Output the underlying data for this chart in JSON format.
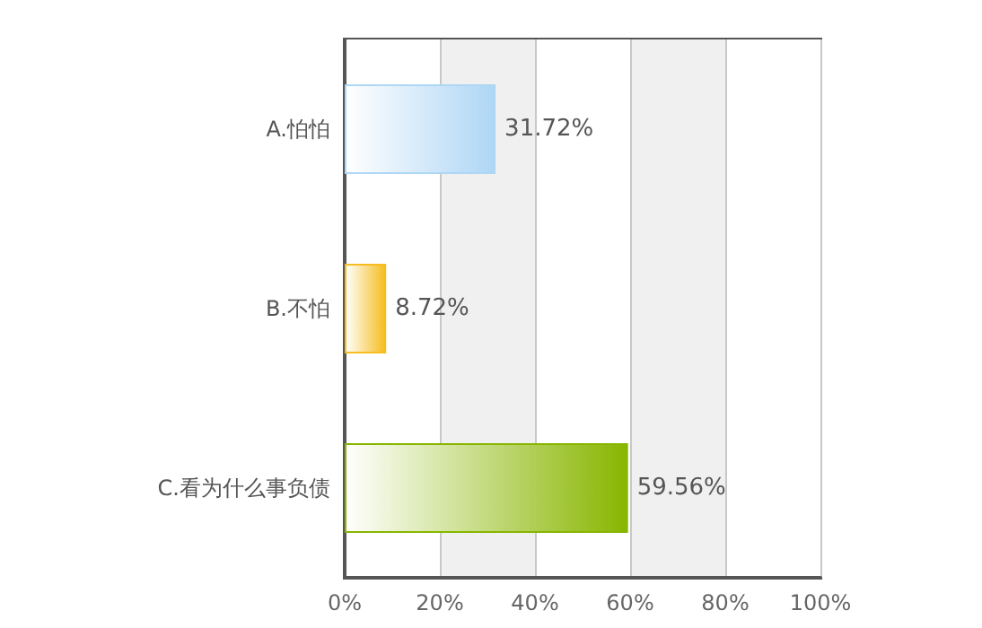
{
  "chart_data": {
    "type": "bar",
    "orientation": "horizontal",
    "categories": [
      "A.怕怕",
      "B.不怕",
      "C.看为什么事负债"
    ],
    "values": [
      31.72,
      8.72,
      59.56
    ],
    "colors": [
      "#aed6f5",
      "#f5bd1f",
      "#88b600"
    ],
    "value_labels": [
      "31.72%",
      "8.72%",
      "59.56%"
    ],
    "xlim": [
      0,
      100
    ],
    "xticks": [
      {
        "value": 0,
        "label": "0%"
      },
      {
        "value": 20,
        "label": "20%"
      },
      {
        "value": 40,
        "label": "40%"
      },
      {
        "value": 60,
        "label": "60%"
      },
      {
        "value": 80,
        "label": "80%"
      },
      {
        "value": 100,
        "label": "100%"
      }
    ],
    "grid": "x"
  }
}
